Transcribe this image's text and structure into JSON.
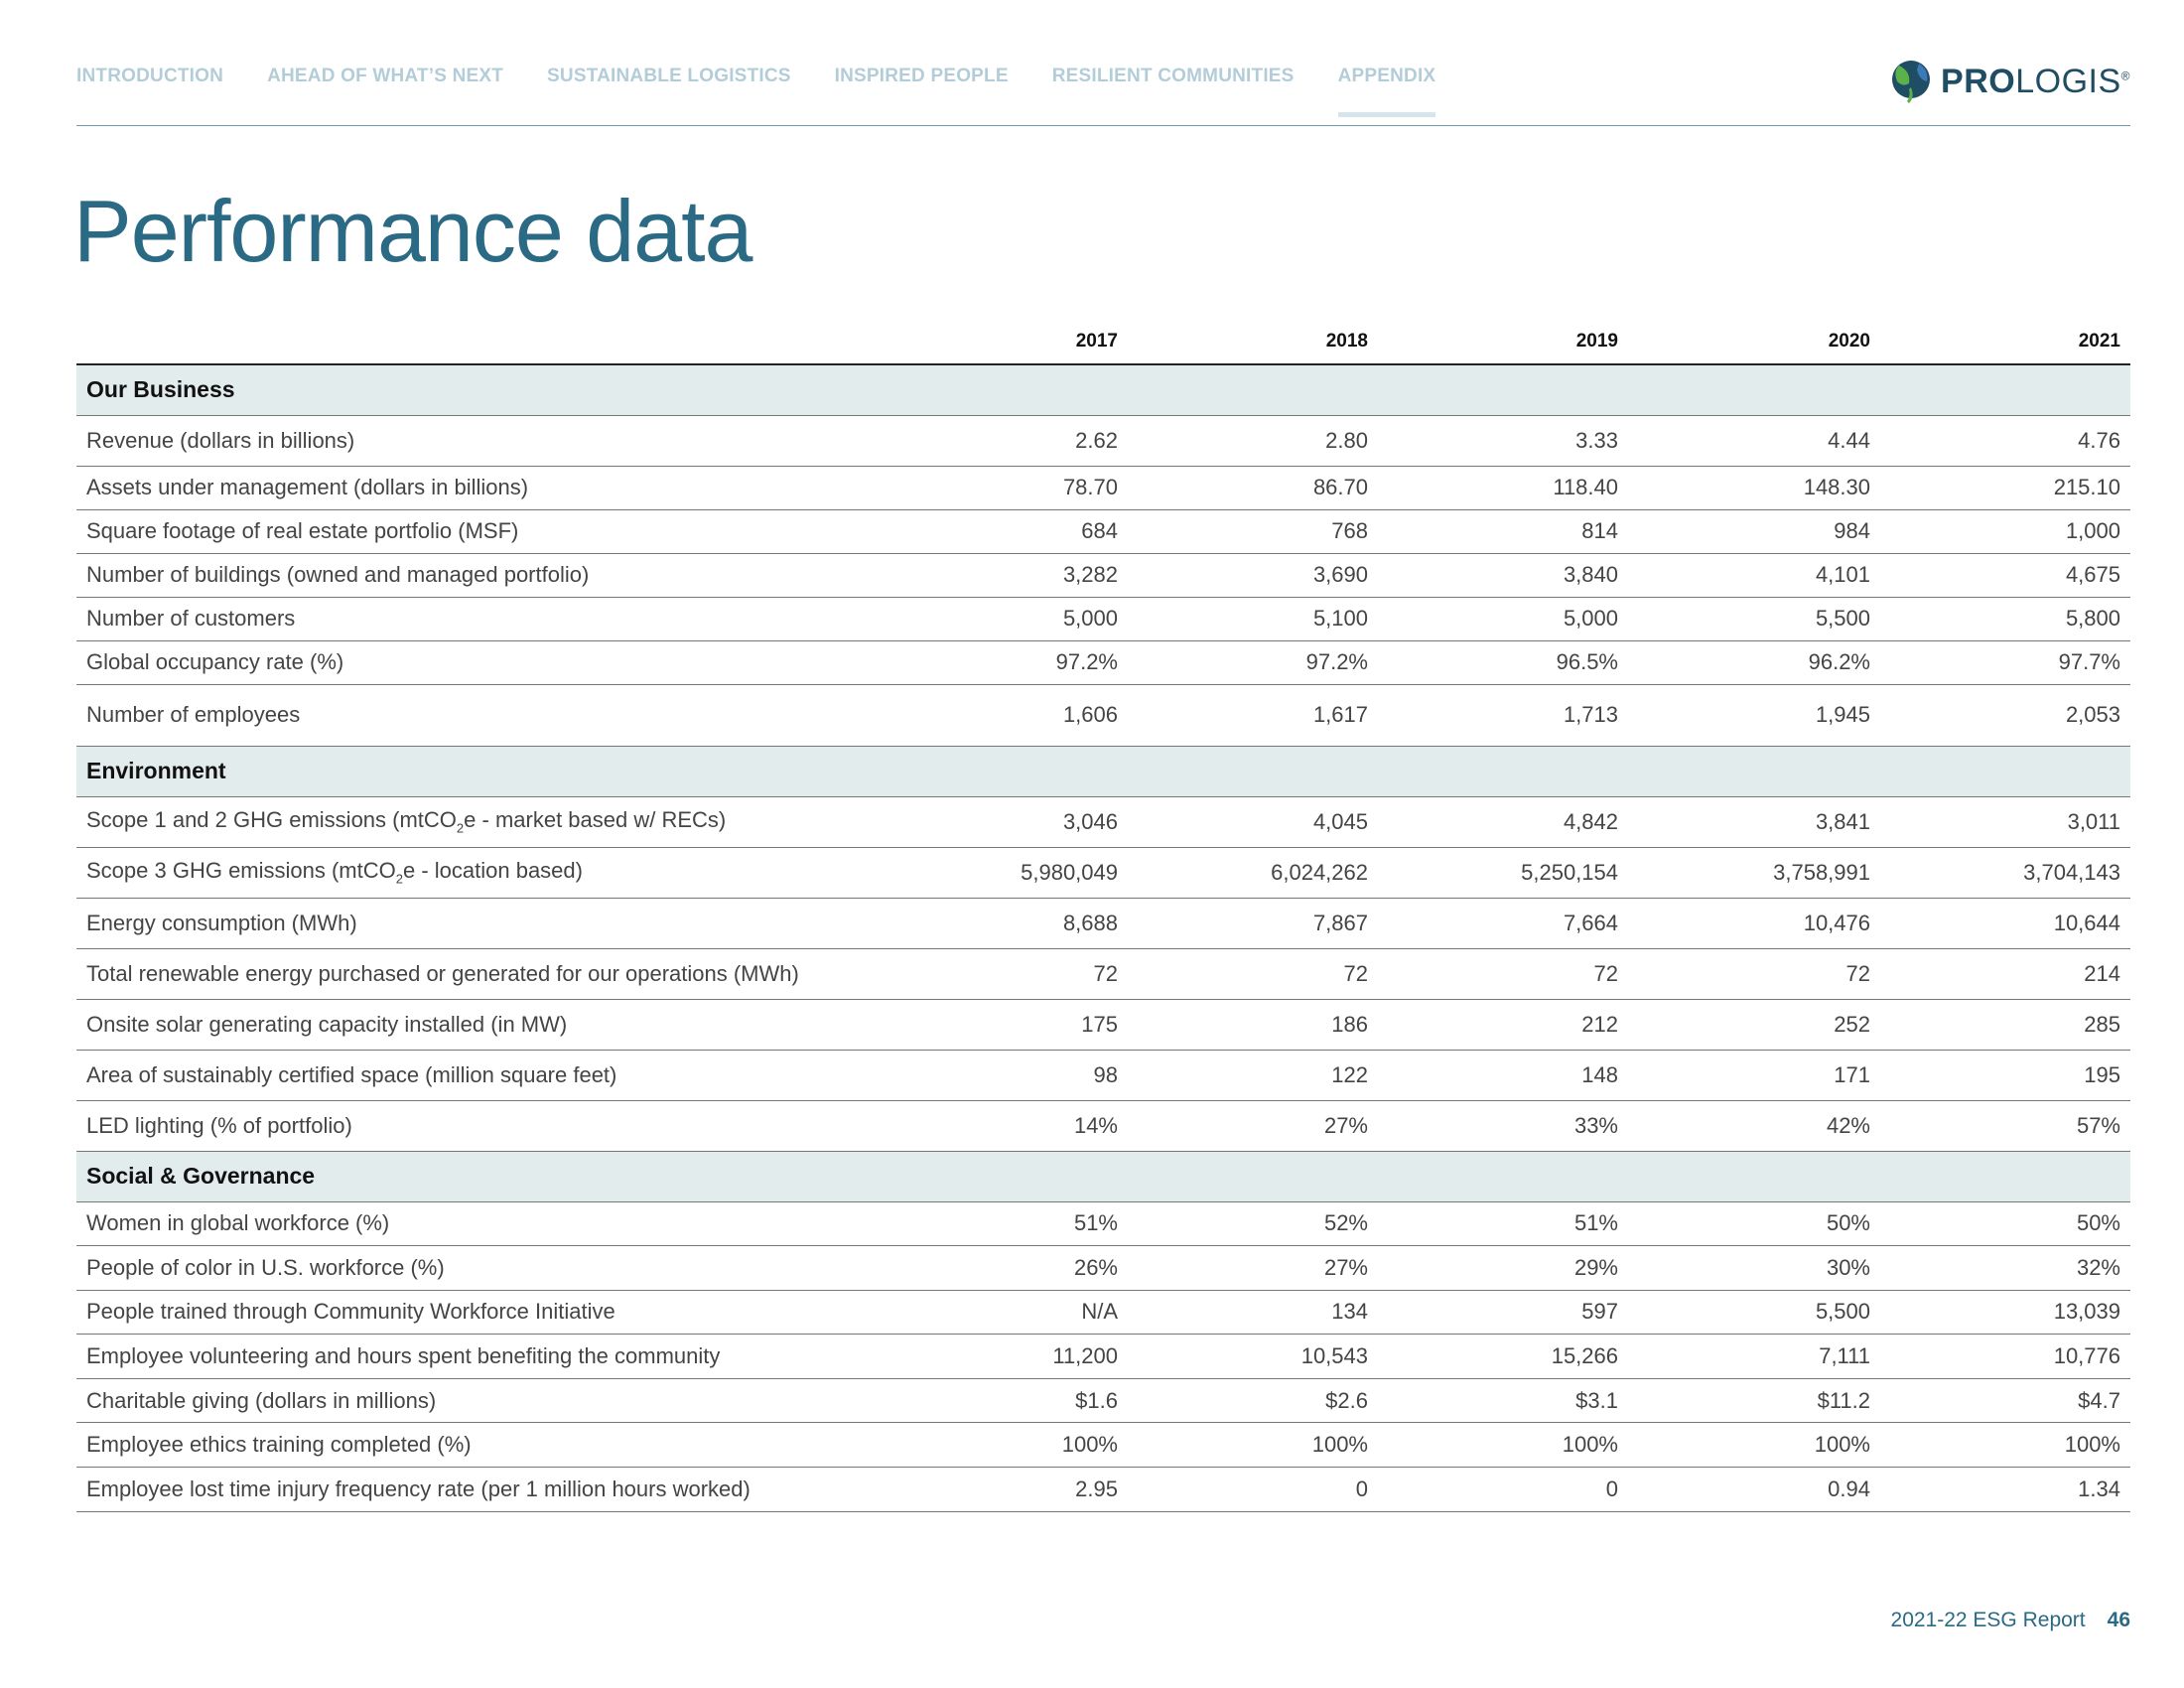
{
  "nav": [
    "INTRODUCTION",
    "AHEAD OF WHAT’S NEXT",
    "SUSTAINABLE LOGISTICS",
    "INSPIRED PEOPLE",
    "RESILIENT COMMUNITIES",
    "APPENDIX"
  ],
  "logo": {
    "bold": "PRO",
    "light": "LOGIS",
    "mark": "®"
  },
  "title": "Performance data",
  "table": {
    "years": [
      "2017",
      "2018",
      "2019",
      "2020",
      "2021"
    ],
    "sections": [
      {
        "title": "Our Business",
        "rows": [
          {
            "label": "Revenue (dollars in billions)",
            "values": [
              "2.62",
              "2.80",
              "3.33",
              "4.44",
              "4.76"
            ]
          },
          {
            "label": "Assets under management (dollars in billions)",
            "values": [
              "78.70",
              "86.70",
              "118.40",
              "148.30",
              "215.10"
            ]
          },
          {
            "label": "Square footage of real estate portfolio (MSF)",
            "values": [
              "684",
              "768",
              "814",
              "984",
              "1,000"
            ]
          },
          {
            "label": "Number of buildings (owned and managed portfolio)",
            "values": [
              "3,282",
              "3,690",
              "3,840",
              "4,101",
              "4,675"
            ]
          },
          {
            "label": "Number of customers",
            "values": [
              "5,000",
              "5,100",
              "5,000",
              "5,500",
              "5,800"
            ]
          },
          {
            "label": "Global occupancy rate (%)",
            "values": [
              "97.2%",
              "97.2%",
              "96.5%",
              "96.2%",
              "97.7%"
            ]
          },
          {
            "label": "Number of employees",
            "values": [
              "1,606",
              "1,617",
              "1,713",
              "1,945",
              "2,053"
            ]
          }
        ]
      },
      {
        "title": "Environment",
        "rows": [
          {
            "label": [
              "Scope 1 and 2 GHG emissions (mtCO",
              "2",
              "e - market based w/ RECs)"
            ],
            "values": [
              "3,046",
              "4,045",
              "4,842",
              "3,841",
              "3,011"
            ]
          },
          {
            "label": [
              "Scope 3 GHG emissions (mtCO",
              "2",
              "e - location based)"
            ],
            "values": [
              "5,980,049",
              "6,024,262",
              "5,250,154",
              "3,758,991",
              "3,704,143"
            ]
          },
          {
            "label": "Energy consumption (MWh)",
            "values": [
              "8,688",
              "7,867",
              "7,664",
              "10,476",
              "10,644"
            ]
          },
          {
            "label": "Total renewable energy purchased or generated for our operations (MWh)",
            "values": [
              "72",
              "72",
              "72",
              "72",
              "214"
            ]
          },
          {
            "label": "Onsite solar generating capacity installed (in MW)",
            "values": [
              "175",
              "186",
              "212",
              "252",
              "285"
            ]
          },
          {
            "label": "Area of sustainably certified space (million square feet)",
            "values": [
              "98",
              "122",
              "148",
              "171",
              "195"
            ]
          },
          {
            "label": "LED lighting (% of portfolio)",
            "values": [
              "14%",
              "27%",
              "33%",
              "42%",
              "57%"
            ]
          }
        ]
      },
      {
        "title": "Social & Governance",
        "rows": [
          {
            "label": "Women in global workforce (%)",
            "values": [
              "51%",
              "52%",
              "51%",
              "50%",
              "50%"
            ]
          },
          {
            "label": "People of color in U.S. workforce (%)",
            "values": [
              "26%",
              "27%",
              "29%",
              "30%",
              "32%"
            ]
          },
          {
            "label": "People trained through Community Workforce Initiative",
            "values": [
              "N/A",
              "134",
              "597",
              "5,500",
              "13,039"
            ]
          },
          {
            "label": "Employee volunteering and hours spent benefiting the community",
            "values": [
              "11,200",
              "10,543",
              "15,266",
              "7,111",
              "10,776"
            ]
          },
          {
            "label": "Charitable giving (dollars in millions)",
            "values": [
              "$1.6",
              "$2.6",
              "$3.1",
              "$11.2",
              "$4.7"
            ]
          },
          {
            "label": "Employee ethics training completed (%)",
            "values": [
              "100%",
              "100%",
              "100%",
              "100%",
              "100%"
            ]
          },
          {
            "label": "Employee lost time injury frequency rate (per 1 million hours worked)",
            "values": [
              "2.95",
              "0",
              "0",
              "0.94",
              "1.34"
            ]
          }
        ]
      }
    ]
  },
  "footer": {
    "report": "2021-22 ESG Report",
    "page": "46"
  }
}
